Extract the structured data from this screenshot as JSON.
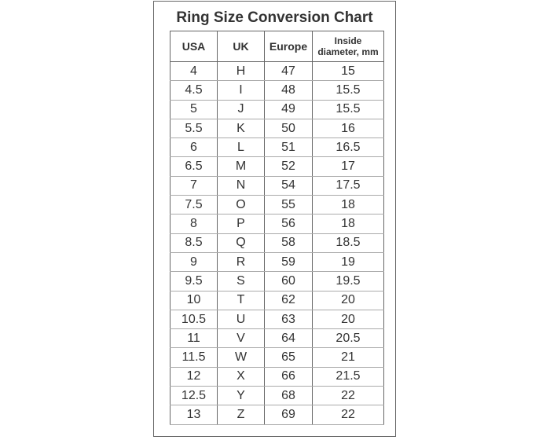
{
  "title": "Ring Size Conversion Chart",
  "headers": [
    "USA",
    "UK",
    "Europe",
    "Inside diameter, mm"
  ],
  "rows": [
    [
      "4",
      "H",
      "47",
      "15"
    ],
    [
      "4.5",
      "I",
      "48",
      "15.5"
    ],
    [
      "5",
      "J",
      "49",
      "15.5"
    ],
    [
      "5.5",
      "K",
      "50",
      "16"
    ],
    [
      "6",
      "L",
      "51",
      "16.5"
    ],
    [
      "6.5",
      "M",
      "52",
      "17"
    ],
    [
      "7",
      "N",
      "54",
      "17.5"
    ],
    [
      "7.5",
      "O",
      "55",
      "18"
    ],
    [
      "8",
      "P",
      "56",
      "18"
    ],
    [
      "8.5",
      "Q",
      "58",
      "18.5"
    ],
    [
      "9",
      "R",
      "59",
      "19"
    ],
    [
      "9.5",
      "S",
      "60",
      "19.5"
    ],
    [
      "10",
      "T",
      "62",
      "20"
    ],
    [
      "10.5",
      "U",
      "63",
      "20"
    ],
    [
      "11",
      "V",
      "64",
      "20.5"
    ],
    [
      "11.5",
      "W",
      "65",
      "21"
    ],
    [
      "12",
      "X",
      "66",
      "21.5"
    ],
    [
      "12.5",
      "Y",
      "68",
      "22"
    ],
    [
      "13",
      "Z",
      "69",
      "22"
    ]
  ]
}
